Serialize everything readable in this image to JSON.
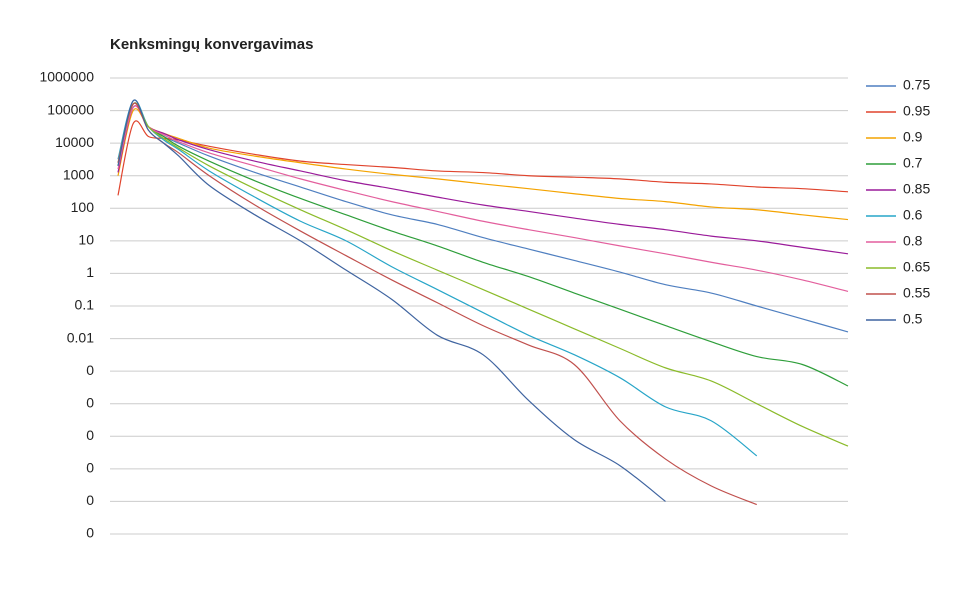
{
  "chart_data": {
    "type": "line",
    "title": "Kenksmingų konvergavimas",
    "log_scale": true,
    "grid": true,
    "legend": "right",
    "x": [
      0,
      1,
      2,
      3,
      4,
      6,
      9,
      12,
      15,
      18,
      21,
      24,
      27,
      30,
      33,
      36,
      39,
      42,
      45,
      48
    ],
    "xlim": [
      0,
      48
    ],
    "ylim": [
      1e-08,
      1000000
    ],
    "yticks": [
      1000000,
      100000,
      10000,
      1000,
      100,
      10,
      1,
      0.1,
      0.01,
      {
        "value": 0.001,
        "label": "0"
      },
      {
        "value": 0.0001,
        "label": "0"
      },
      {
        "value": 1e-05,
        "label": "0"
      },
      {
        "value": 1e-06,
        "label": "0"
      },
      {
        "value": 1e-07,
        "label": "0"
      },
      {
        "value": 1e-08,
        "label": "0"
      }
    ],
    "series": [
      {
        "name": "0.75",
        "color": "#4f7fc0",
        "values": [
          2000,
          160000,
          32000,
          16000,
          10000,
          4000,
          1260,
          450,
          160,
          63,
          32,
          12.6,
          5.6,
          2.5,
          1.1,
          0.45,
          0.25,
          0.1,
          0.04,
          0.016
        ]
      },
      {
        "name": "0.95",
        "color": "#e0442d",
        "values": [
          250,
          40000,
          16000,
          14000,
          12500,
          8000,
          4500,
          2800,
          2200,
          1800,
          1400,
          1250,
          1000,
          900,
          800,
          630,
          560,
          450,
          400,
          320
        ]
      },
      {
        "name": "0.9",
        "color": "#f4a300",
        "values": [
          1000,
          100000,
          32000,
          20000,
          14000,
          7000,
          4000,
          2500,
          1600,
          1100,
          800,
          560,
          400,
          280,
          200,
          160,
          110,
          90,
          63,
          45
        ]
      },
      {
        "name": "0.7",
        "color": "#2e9e3a",
        "values": [
          2000,
          160000,
          32000,
          16000,
          8000,
          2800,
          700,
          200,
          63,
          20,
          7,
          2.2,
          0.8,
          0.25,
          0.08,
          0.025,
          0.008,
          0.0028,
          0.0016,
          0.00035
        ]
      },
      {
        "name": "0.85",
        "color": "#9a1b9a",
        "values": [
          1260,
          126000,
          32000,
          20000,
          12600,
          6300,
          2800,
          1400,
          700,
          400,
          220,
          126,
          80,
          50,
          32,
          22,
          14,
          10,
          6.3,
          4
        ]
      },
      {
        "name": "0.6",
        "color": "#27a5c8",
        "values": [
          3200,
          200000,
          32000,
          12600,
          6300,
          1400,
          220,
          40,
          10,
          1.6,
          0.32,
          0.063,
          0.0126,
          0.0032,
          0.00063,
          8e-05,
          3e-05,
          2.5e-06,
          null,
          null
        ]
      },
      {
        "name": "0.8",
        "color": "#e35f9d",
        "values": [
          1600,
          126000,
          32000,
          18000,
          11000,
          5000,
          2000,
          800,
          350,
          160,
          80,
          40,
          22,
          12.6,
          7,
          4,
          2.2,
          1.26,
          0.63,
          0.28
        ]
      },
      {
        "name": "0.65",
        "color": "#8bbb2a",
        "values": [
          2500,
          160000,
          32000,
          14000,
          7000,
          2000,
          400,
          90,
          22,
          5,
          1.26,
          0.32,
          0.08,
          0.02,
          0.005,
          0.00126,
          0.0005,
          0.0001,
          2e-05,
          5e-06
        ]
      },
      {
        "name": "0.55",
        "color": "#c0504d",
        "values": [
          2500,
          160000,
          25000,
          10000,
          5000,
          1000,
          126,
          20,
          3.5,
          0.63,
          0.126,
          0.025,
          0.0063,
          0.0016,
          3e-05,
          2e-06,
          3e-07,
          8e-08,
          null,
          null
        ]
      },
      {
        "name": "0.5",
        "color": "#3f64a0",
        "values": [
          2000,
          200000,
          25000,
          10000,
          4000,
          500,
          63,
          10,
          1.26,
          0.16,
          0.0126,
          0.0032,
          0.000126,
          7.9e-06,
          1.26e-06,
          1e-07,
          null,
          null,
          null,
          null
        ]
      }
    ]
  }
}
